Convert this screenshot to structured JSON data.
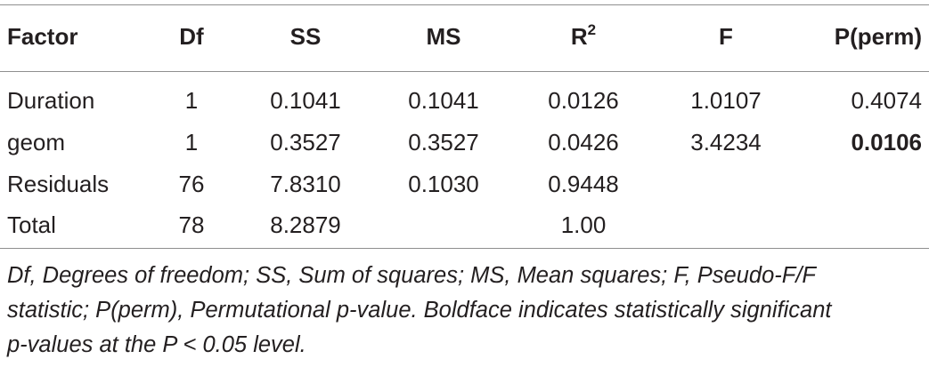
{
  "table": {
    "headers": {
      "factor": "Factor",
      "df": "Df",
      "ss": "SS",
      "ms": "MS",
      "r2_base": "R",
      "r2_sup": "2",
      "f": "F",
      "p": "P(perm)"
    },
    "rows": [
      {
        "factor": "Duration",
        "df": "1",
        "ss": "0.1041",
        "ms": "0.1041",
        "r2": "0.0126",
        "f": "1.0107",
        "p": "0.4074",
        "p_bold": false
      },
      {
        "factor": "geom",
        "df": "1",
        "ss": "0.3527",
        "ms": "0.3527",
        "r2": "0.0426",
        "f": "3.4234",
        "p": "0.0106",
        "p_bold": true
      },
      {
        "factor": "Residuals",
        "df": "76",
        "ss": "7.8310",
        "ms": "0.1030",
        "r2": "0.9448",
        "f": "",
        "p": "",
        "p_bold": false
      },
      {
        "factor": "Total",
        "df": "78",
        "ss": "8.2879",
        "ms": "",
        "r2": "1.00",
        "f": "",
        "p": "",
        "p_bold": false
      }
    ]
  },
  "footnote": {
    "line1": "Df, Degrees of freedom; SS, Sum of squares; MS, Mean squares; F, Pseudo-F/F",
    "line2": "statistic; P(perm), Permutational p-value. Boldface indicates statistically significant",
    "line3": "p-values at the P < 0.05 level."
  }
}
